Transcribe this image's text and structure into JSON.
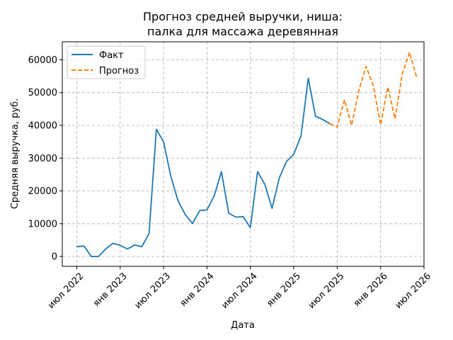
{
  "chart_data": {
    "type": "line",
    "title_lines": [
      "Прогноз средней выручки, ниша:",
      "палка для массажа деревянная"
    ],
    "xlabel": "Дата",
    "ylabel": "Средняя выручка, руб.",
    "x_ticks": [
      "2022-07",
      "2023-01",
      "2023-07",
      "2024-01",
      "2024-07",
      "2025-01",
      "2025-07",
      "2026-01",
      "2026-07"
    ],
    "x_tick_labels": [
      "июл 2022",
      "янв 2023",
      "июл 2023",
      "янв 2024",
      "июл 2024",
      "янв 2025",
      "июл 2025",
      "янв 2026",
      "июл 2026"
    ],
    "y_ticks": [
      0,
      10000,
      20000,
      30000,
      40000,
      50000,
      60000
    ],
    "y_tick_labels": [
      "0",
      "10000",
      "20000",
      "30000",
      "40000",
      "50000",
      "60000"
    ],
    "xlim": [
      "2022-05",
      "2026-07"
    ],
    "ylim": [
      -3000,
      65500
    ],
    "grid": true,
    "legend_position": "upper-left",
    "series": [
      {
        "name": "Факт",
        "color": "#1f77b4",
        "style": "solid",
        "x": [
          "2022-07",
          "2022-08",
          "2022-09",
          "2022-10",
          "2022-11",
          "2022-12",
          "2023-01",
          "2023-02",
          "2023-03",
          "2023-04",
          "2023-05",
          "2023-06",
          "2023-07",
          "2023-08",
          "2023-09",
          "2023-10",
          "2023-11",
          "2023-12",
          "2024-01",
          "2024-02",
          "2024-03",
          "2024-04",
          "2024-05",
          "2024-06",
          "2024-07",
          "2024-08",
          "2024-09",
          "2024-10",
          "2024-11",
          "2024-12",
          "2025-01",
          "2025-02",
          "2025-03",
          "2025-04",
          "2025-05",
          "2025-06"
        ],
        "values": [
          3000,
          3200,
          0,
          0,
          2300,
          4000,
          3400,
          2300,
          3500,
          3000,
          7000,
          38800,
          35000,
          24500,
          17000,
          12800,
          10100,
          14000,
          14200,
          18500,
          25900,
          13200,
          12000,
          12200,
          8800,
          25900,
          22000,
          14700,
          24000,
          29000,
          31200,
          36800,
          54400,
          42800,
          41800,
          40500
        ]
      },
      {
        "name": "Прогноз",
        "color": "#ff7f0e",
        "style": "dashed",
        "x": [
          "2025-06",
          "2025-07",
          "2025-08",
          "2025-09",
          "2025-10",
          "2025-11",
          "2025-12",
          "2026-01",
          "2026-02",
          "2026-03",
          "2026-04",
          "2026-05",
          "2026-06"
        ],
        "values": [
          40500,
          39500,
          47800,
          40000,
          50700,
          58000,
          52000,
          40200,
          51700,
          42000,
          55700,
          62300,
          54500
        ]
      }
    ]
  }
}
